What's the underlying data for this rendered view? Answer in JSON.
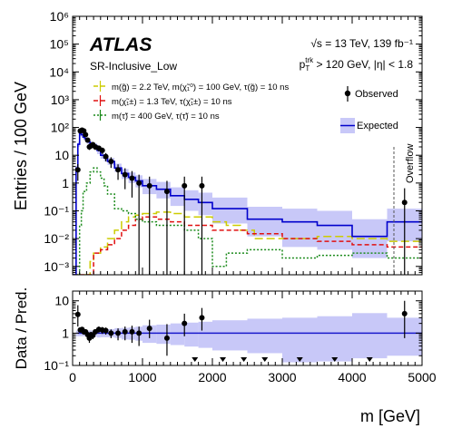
{
  "chart_data": {
    "type": "histogram",
    "experiment": "ATLAS",
    "region": "SR-Inclusive_Low",
    "energy": "√s = 13 TeV,  139 fb⁻¹",
    "cuts": "p_T^trk > 120 GeV, |η| < 1.8",
    "xlabel": "m [GeV]",
    "top_ylabel": "Entries / 100 GeV",
    "bottom_ylabel": "Data / Pred.",
    "overflow_label": "Overflow",
    "x_range": [
      0,
      5000
    ],
    "x_ticks": [
      "0",
      "1000",
      "2000",
      "3000",
      "4000",
      "5000"
    ],
    "top_y_log": true,
    "top_y_range": [
      0.0005,
      1000000
    ],
    "top_y_ticks": [
      "10⁻³",
      "10⁻²",
      "10⁻¹",
      "1",
      "10",
      "10²",
      "10³",
      "10⁴",
      "10⁵",
      "10⁶"
    ],
    "bottom_y_log": true,
    "bottom_y_range": [
      0.1,
      20
    ],
    "bottom_y_ticks": [
      "10⁻¹",
      "1",
      "10"
    ],
    "legend": {
      "observed": "Observed",
      "expected": "Expected",
      "signal_1": "m(g̃) = 2.2 TeV, m(χ̃₁⁰) = 100 GeV, τ(g̃) = 10 ns",
      "signal_2": "m(χ̃₁±) = 1.3 TeV, τ(χ̃₁±) = 10 ns",
      "signal_3": "m(τ̃) = 400 GeV, τ(τ̃) = 10 ns"
    },
    "colors": {
      "expected": "#0000cc",
      "band": "#c8c8f8",
      "signal_1": "#cccc00",
      "signal_2": "#e01010",
      "signal_3": "#1a8a1a",
      "overflow_line": "#555555",
      "ratio_line": "#1a1acc"
    },
    "expected": {
      "edges": [
        0,
        50,
        75,
        100,
        125,
        150,
        175,
        200,
        225,
        250,
        275,
        300,
        350,
        400,
        450,
        500,
        600,
        700,
        800,
        900,
        1000,
        1200,
        1400,
        1600,
        1800,
        2000,
        2500,
        3000,
        3500,
        4000,
        4500,
        5000
      ],
      "values": [
        0.0005,
        3.5,
        25,
        60,
        55,
        45,
        40,
        33,
        30,
        27,
        25,
        22,
        15,
        10,
        8,
        6,
        3.5,
        2.2,
        1.6,
        1.2,
        0.8,
        0.6,
        0.35,
        0.26,
        0.2,
        0.12,
        0.05,
        0.04,
        0.03,
        0.012,
        0.04
      ],
      "band_low": [
        0.0005,
        2.8,
        20,
        48,
        44,
        36,
        32,
        26,
        24,
        21,
        20,
        17,
        11,
        7.5,
        6,
        4.5,
        2.5,
        1.4,
        1,
        0.7,
        0.4,
        0.28,
        0.15,
        0.1,
        0.07,
        0.035,
        0.012,
        0.005,
        0.004,
        0.002,
        0.008
      ],
      "band_high": [
        0.0005,
        4.2,
        30,
        72,
        66,
        54,
        48,
        40,
        36,
        33,
        30,
        27,
        19,
        13,
        10.5,
        8,
        5,
        3.2,
        2.4,
        1.9,
        1.4,
        1.1,
        0.7,
        0.55,
        0.45,
        0.3,
        0.14,
        0.12,
        0.1,
        0.05,
        0.12
      ]
    },
    "signals": [
      {
        "key": "signal_1",
        "edges": [
          0,
          250,
          300,
          400,
          500,
          600,
          700,
          800,
          900,
          1000,
          1200,
          1400,
          1600,
          1800,
          2000,
          2200,
          2400,
          2600,
          3000,
          3500,
          4000,
          4500,
          5000
        ],
        "values": [
          0.0005,
          0.0015,
          0.003,
          0.005,
          0.01,
          0.02,
          0.04,
          0.06,
          0.07,
          0.08,
          0.09,
          0.08,
          0.06,
          0.06,
          0.04,
          0.03,
          0.02,
          0.01,
          0.01,
          0.012,
          0.01,
          0.008
        ]
      },
      {
        "key": "signal_2",
        "edges": [
          0,
          300,
          400,
          500,
          600,
          700,
          800,
          900,
          1000,
          1200,
          1400,
          1600,
          1800,
          2000,
          2500,
          3000,
          3500,
          4000,
          4500,
          5000
        ],
        "values": [
          0.0005,
          0.003,
          0.004,
          0.006,
          0.01,
          0.02,
          0.03,
          0.05,
          0.06,
          0.05,
          0.04,
          0.03,
          0.03,
          0.02,
          0.015,
          0.01,
          0.008,
          0.006,
          0.005
        ]
      },
      {
        "key": "signal_3",
        "edges": [
          0,
          100,
          125,
          150,
          200,
          250,
          300,
          350,
          400,
          450,
          500,
          600,
          700,
          800,
          900,
          1000,
          1200,
          1400,
          1600,
          1800,
          2000,
          2200,
          2500,
          3000,
          3500,
          4000,
          4500,
          5000
        ],
        "values": [
          0.0005,
          0.03,
          0.1,
          0.5,
          1,
          2.5,
          3.5,
          2.5,
          1.5,
          0.8,
          0.4,
          0.12,
          0.1,
          0.08,
          0.05,
          0.04,
          0.03,
          0.03,
          0.02,
          0.01,
          0.001,
          0.003,
          0.004,
          0.002,
          0.0025,
          0.003,
          0.002
        ]
      }
    ],
    "observed": {
      "x": [
        75,
        110,
        135,
        160,
        185,
        215,
        240,
        265,
        290,
        325,
        375,
        425,
        475,
        550,
        650,
        750,
        850,
        950,
        1100,
        1350,
        1600,
        1850,
        4750
      ],
      "y": [
        3,
        75,
        80,
        75,
        55,
        35,
        20,
        22,
        24,
        20,
        18,
        15,
        9,
        6,
        3,
        2,
        1.5,
        1,
        0.8,
        0.5,
        0.8,
        0.8,
        0.2
      ],
      "err": [
        1.8,
        9,
        9,
        9,
        7.5,
        6,
        4.5,
        4.7,
        4.9,
        4.5,
        4.2,
        3.9,
        3,
        2.5,
        1.7,
        1.4,
        1.2,
        1,
        0.9,
        0.7,
        0.9,
        0.9,
        0.45
      ]
    },
    "ratio": {
      "x": [
        75,
        110,
        135,
        160,
        185,
        215,
        240,
        265,
        290,
        325,
        375,
        425,
        475,
        550,
        650,
        750,
        850,
        950,
        1100,
        1350,
        1600,
        1850,
        4750
      ],
      "y": [
        3.8,
        1.25,
        1.3,
        1.1,
        1.1,
        0.9,
        0.7,
        0.9,
        0.85,
        1.1,
        1.3,
        1.25,
        1.2,
        1,
        1,
        1.1,
        1.1,
        1,
        1.4,
        0.7,
        2,
        3,
        4
      ],
      "err_low": [
        2.2,
        0.2,
        0.2,
        0.2,
        0.2,
        0.2,
        0.2,
        0.2,
        0.2,
        0.2,
        0.3,
        0.3,
        0.3,
        0.3,
        0.4,
        0.5,
        0.6,
        0.6,
        0.7,
        0.5,
        1.2,
        1.8,
        3.3
      ],
      "err_high": [
        3.5,
        0.2,
        0.2,
        0.2,
        0.2,
        0.2,
        0.2,
        0.2,
        0.2,
        0.2,
        0.3,
        0.3,
        0.3,
        0.3,
        0.4,
        0.5,
        0.6,
        0.6,
        1.2,
        1.2,
        2,
        3,
        6
      ],
      "arrows_x": [
        1750,
        2150,
        2450,
        2750,
        3250,
        3750,
        4250
      ]
    }
  }
}
